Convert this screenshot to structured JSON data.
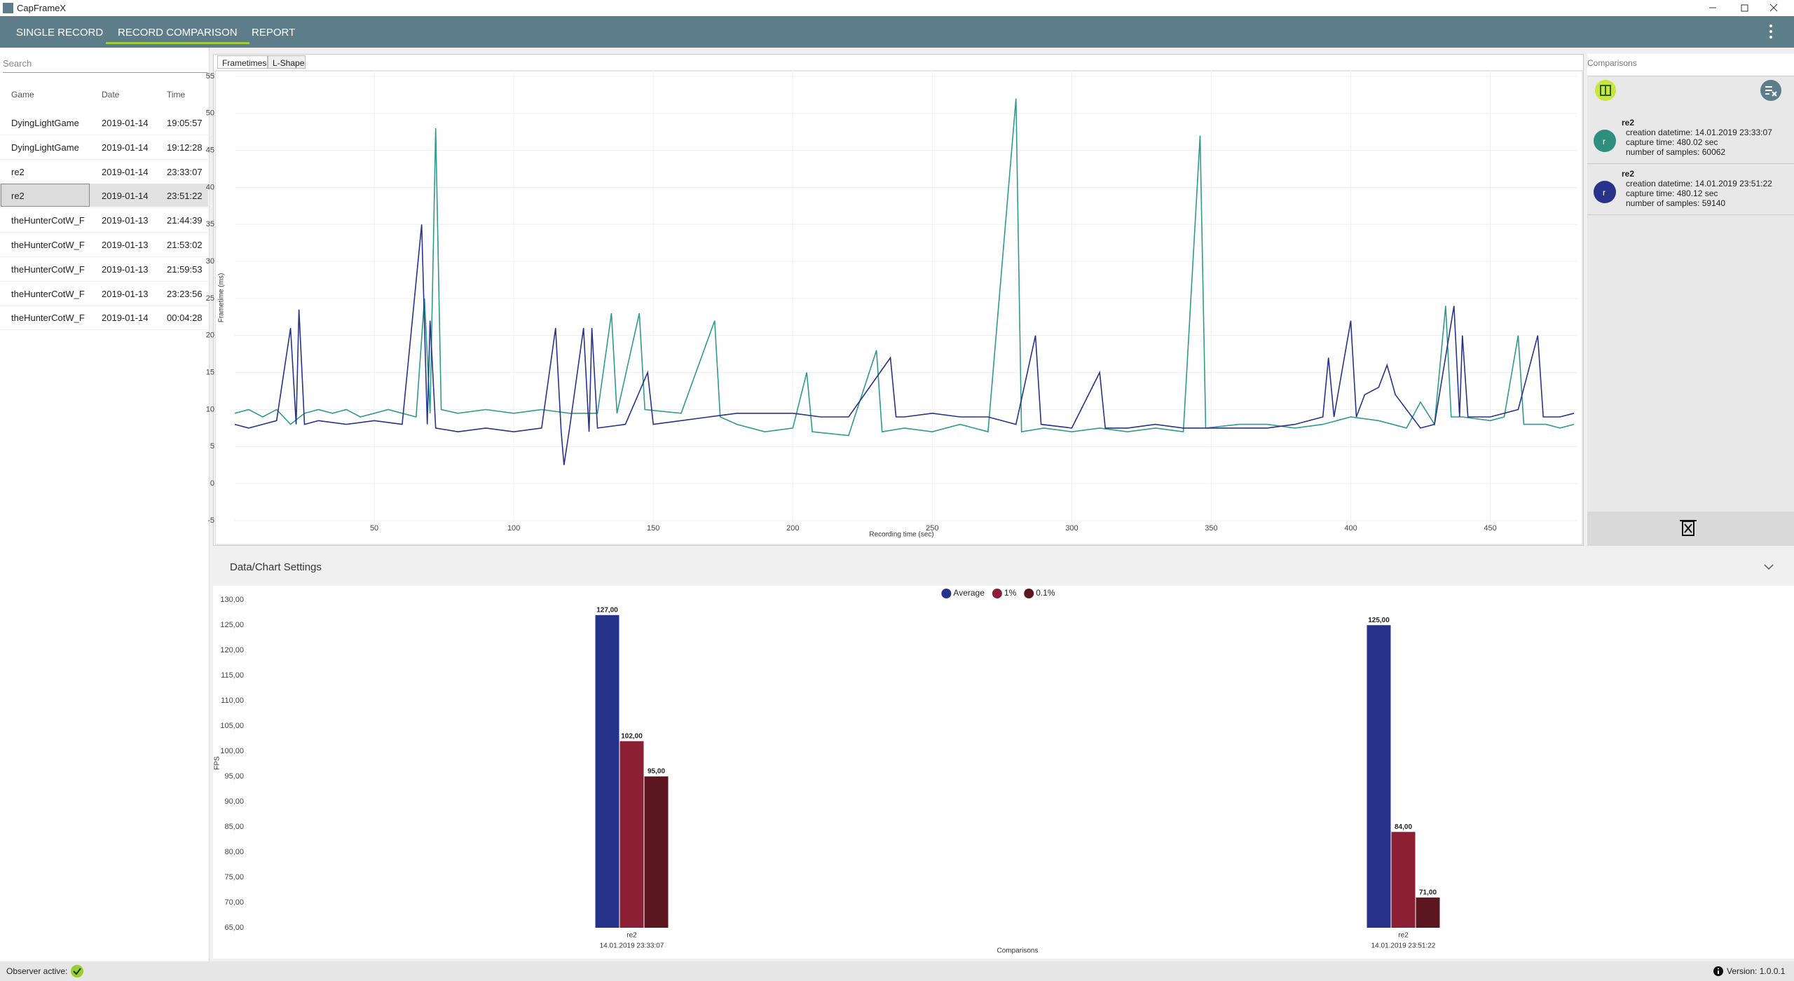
{
  "window": {
    "title": "CapFrameX"
  },
  "nav": {
    "tabs": [
      "SINGLE RECORD",
      "RECORD COMPARISON",
      "REPORT"
    ],
    "active": 1
  },
  "records": {
    "search": "Search",
    "columns": [
      "Game",
      "Date",
      "Time"
    ],
    "selected": 3,
    "rows": [
      [
        "DyingLightGame",
        "2019-01-14",
        "19:05:57"
      ],
      [
        "DyingLightGame",
        "2019-01-14",
        "19:12:28"
      ],
      [
        "re2",
        "2019-01-14",
        "23:33:07"
      ],
      [
        "re2",
        "2019-01-14",
        "23:51:22"
      ],
      [
        "theHunterCotW_F",
        "2019-01-13",
        "21:44:39"
      ],
      [
        "theHunterCotW_F",
        "2019-01-13",
        "21:53:02"
      ],
      [
        "theHunterCotW_F",
        "2019-01-13",
        "21:59:53"
      ],
      [
        "theHunterCotW_F",
        "2019-01-13",
        "23:23:56"
      ],
      [
        "theHunterCotW_F",
        "2019-01-14",
        "00:04:28"
      ]
    ]
  },
  "chart_tabs": [
    "Frametimes",
    "L-Shape"
  ],
  "chart_data": [
    {
      "type": "line",
      "xlabel": "Recording time (sec)",
      "ylabel": "Frametime (ms)",
      "xlim": [
        0,
        481
      ],
      "ylim": [
        -5.2,
        55.8
      ],
      "xticks": [
        50,
        100,
        150,
        200,
        250,
        300,
        350,
        400,
        450
      ],
      "yticks": [
        -5,
        0,
        5,
        10,
        15,
        20,
        25,
        30,
        35,
        40,
        45,
        50,
        55
      ],
      "grid": true,
      "series": [
        {
          "color": "#2f9b8a",
          "x": [
            0,
            5,
            10,
            15,
            20,
            25,
            30,
            35,
            40,
            45,
            50,
            55,
            60,
            65,
            68,
            70,
            72,
            74,
            80,
            90,
            100,
            110,
            120,
            130,
            135,
            137,
            145,
            147,
            160,
            172,
            174,
            180,
            190,
            200,
            205,
            207,
            220,
            230,
            232,
            240,
            250,
            260,
            270,
            280,
            282,
            290,
            300,
            310,
            320,
            330,
            340,
            346,
            348,
            360,
            370,
            380,
            390,
            400,
            410,
            420,
            425,
            430,
            434,
            436,
            440,
            450,
            455,
            460,
            462,
            470,
            475,
            480
          ],
          "values": [
            9.5,
            10,
            9,
            10,
            8,
            9.5,
            10,
            9.5,
            10,
            9,
            9.5,
            10,
            9.5,
            9,
            25,
            9.5,
            48,
            10,
            9.5,
            10,
            9.5,
            10,
            9.5,
            9.5,
            23,
            9.5,
            23,
            10,
            9.5,
            22,
            9,
            8,
            7,
            7.5,
            15,
            7,
            6.5,
            18,
            7,
            7.5,
            7,
            8,
            7,
            52,
            7,
            7.5,
            7,
            7.5,
            7,
            7.5,
            7,
            47,
            7.5,
            8,
            8,
            7.5,
            8,
            9,
            8.5,
            7.5,
            11,
            8,
            24,
            9,
            9,
            8.5,
            9,
            20,
            8,
            8,
            7.5,
            8
          ]
        },
        {
          "color": "#28338a",
          "x": [
            0,
            5,
            10,
            15,
            20,
            22,
            23,
            25,
            30,
            40,
            50,
            60,
            67,
            69,
            70,
            72,
            80,
            90,
            100,
            110,
            115,
            117,
            118,
            120,
            125,
            127,
            128,
            130,
            140,
            148,
            150,
            160,
            170,
            180,
            190,
            200,
            210,
            220,
            235,
            237,
            240,
            250,
            260,
            270,
            280,
            287,
            289,
            300,
            310,
            312,
            320,
            330,
            340,
            350,
            360,
            370,
            380,
            390,
            392,
            394,
            400,
            402,
            405,
            410,
            413,
            416,
            420,
            425,
            430,
            437,
            439,
            440,
            442,
            450,
            460,
            467,
            469,
            475,
            480
          ],
          "values": [
            8,
            7.5,
            8,
            8.5,
            21,
            8,
            23.5,
            8,
            8.5,
            8,
            8.5,
            8,
            35,
            8,
            22,
            7.5,
            7,
            7.5,
            7,
            7.5,
            21,
            7,
            2.5,
            7.5,
            21,
            7,
            21,
            7.5,
            8,
            15,
            8,
            8.5,
            9,
            9.5,
            9.5,
            9.5,
            9,
            9,
            17,
            9,
            9,
            9.5,
            9,
            9,
            8,
            20,
            8,
            7.5,
            15,
            7.5,
            7.5,
            8,
            7.5,
            7.5,
            7.5,
            7.5,
            8,
            9,
            17,
            9,
            22,
            9,
            12,
            13,
            16,
            12,
            10,
            7.5,
            8,
            24,
            9,
            20,
            9,
            9,
            10,
            20,
            9,
            9,
            9.5
          ]
        }
      ]
    },
    {
      "type": "bar",
      "xlabel": "Comparisons",
      "ylabel": "FPS",
      "legend": "top",
      "grid": false,
      "categories": [
        [
          "re2",
          "14.01.2019 23:33:07"
        ],
        [
          "re2",
          "14.01.2019 23:51:22"
        ]
      ],
      "ylim": [
        65,
        131
      ],
      "yticks": [
        {
          "value": 65,
          "label": "65,00"
        },
        {
          "value": 70,
          "label": "70,00"
        },
        {
          "value": 75,
          "label": "75,00"
        },
        {
          "value": 80,
          "label": "80,00"
        },
        {
          "value": 85,
          "label": "85,00"
        },
        {
          "value": 90,
          "label": "90,00"
        },
        {
          "value": 95,
          "label": "95,00"
        },
        {
          "value": 100,
          "label": "100,00"
        },
        {
          "value": 105,
          "label": "105,00"
        },
        {
          "value": 110,
          "label": "110,00"
        },
        {
          "value": 115,
          "label": "115,00"
        },
        {
          "value": 120,
          "label": "120,00"
        },
        {
          "value": 125,
          "label": "125,00"
        },
        {
          "value": 130,
          "label": "130,00"
        }
      ],
      "series": [
        {
          "name": "Average",
          "color": "#25348a",
          "values": [
            127,
            125
          ],
          "value_labels": [
            "127,00",
            "125,00"
          ]
        },
        {
          "name": "1%",
          "color": "#8b2035",
          "values": [
            102,
            84
          ],
          "value_labels": [
            "102,00",
            "84,00"
          ]
        },
        {
          "name": "0.1%",
          "color": "#5c1620",
          "values": [
            95,
            71
          ],
          "value_labels": [
            "95,00",
            "71,00"
          ]
        }
      ]
    }
  ],
  "comparisons": {
    "title": "Comparisons",
    "items": [
      {
        "initial": "r",
        "name": "re2",
        "color": "#2f8f7e",
        "lines": [
          "creation datetime: 14.01.2019 23:33:07",
          "capture time: 480.02 sec",
          "number of samples: 60062"
        ]
      },
      {
        "initial": "r",
        "name": "re2",
        "color": "#28338a",
        "lines": [
          "creation datetime: 14.01.2019 23:51:22",
          "capture time: 480.12 sec",
          "number of samples: 59140"
        ]
      }
    ]
  },
  "settings": {
    "title": "Data/Chart Settings"
  },
  "status": {
    "observer": "Observer active:",
    "version": "Version: 1.0.0.1"
  }
}
